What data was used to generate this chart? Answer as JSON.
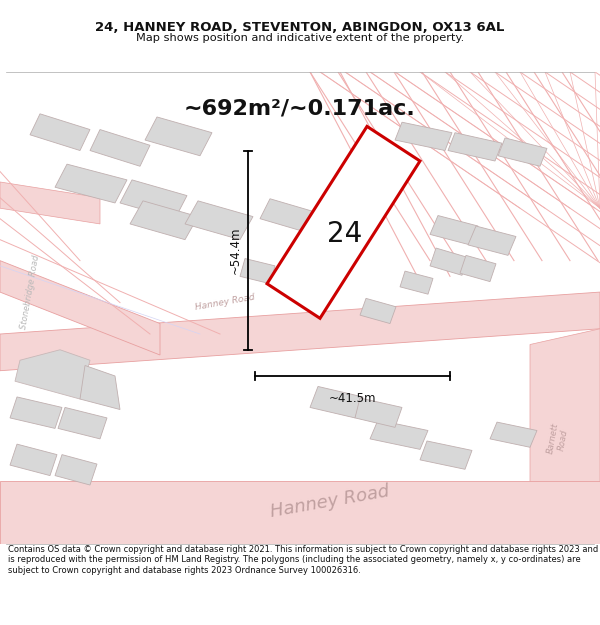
{
  "title_line1": "24, HANNEY ROAD, STEVENTON, ABINGDON, OX13 6AL",
  "title_line2": "Map shows position and indicative extent of the property.",
  "area_text": "~692m²/~0.171ac.",
  "label_number": "24",
  "dim_vertical": "~54.4m",
  "dim_horizontal": "~41.5m",
  "footer_text": "Contains OS data © Crown copyright and database right 2021. This information is subject to Crown copyright and database rights 2023 and is reproduced with the permission of HM Land Registry. The polygons (including the associated geometry, namely x, y co-ordinates) are subject to Crown copyright and database rights 2023 Ordnance Survey 100026316.",
  "bg_color": "#ffffff",
  "road_fill": "#f5d5d5",
  "road_outline": "#e8a0a0",
  "building_fill": "#d8d8d8",
  "building_outline": "#c0b0b0",
  "plot_fill": "#ffffff",
  "plot_outline": "#cc0000",
  "road_label_color": "#b8a0a0",
  "stonebridge_label_color": "#b0b0b0",
  "text_color": "#111111",
  "footer_color": "#111111"
}
